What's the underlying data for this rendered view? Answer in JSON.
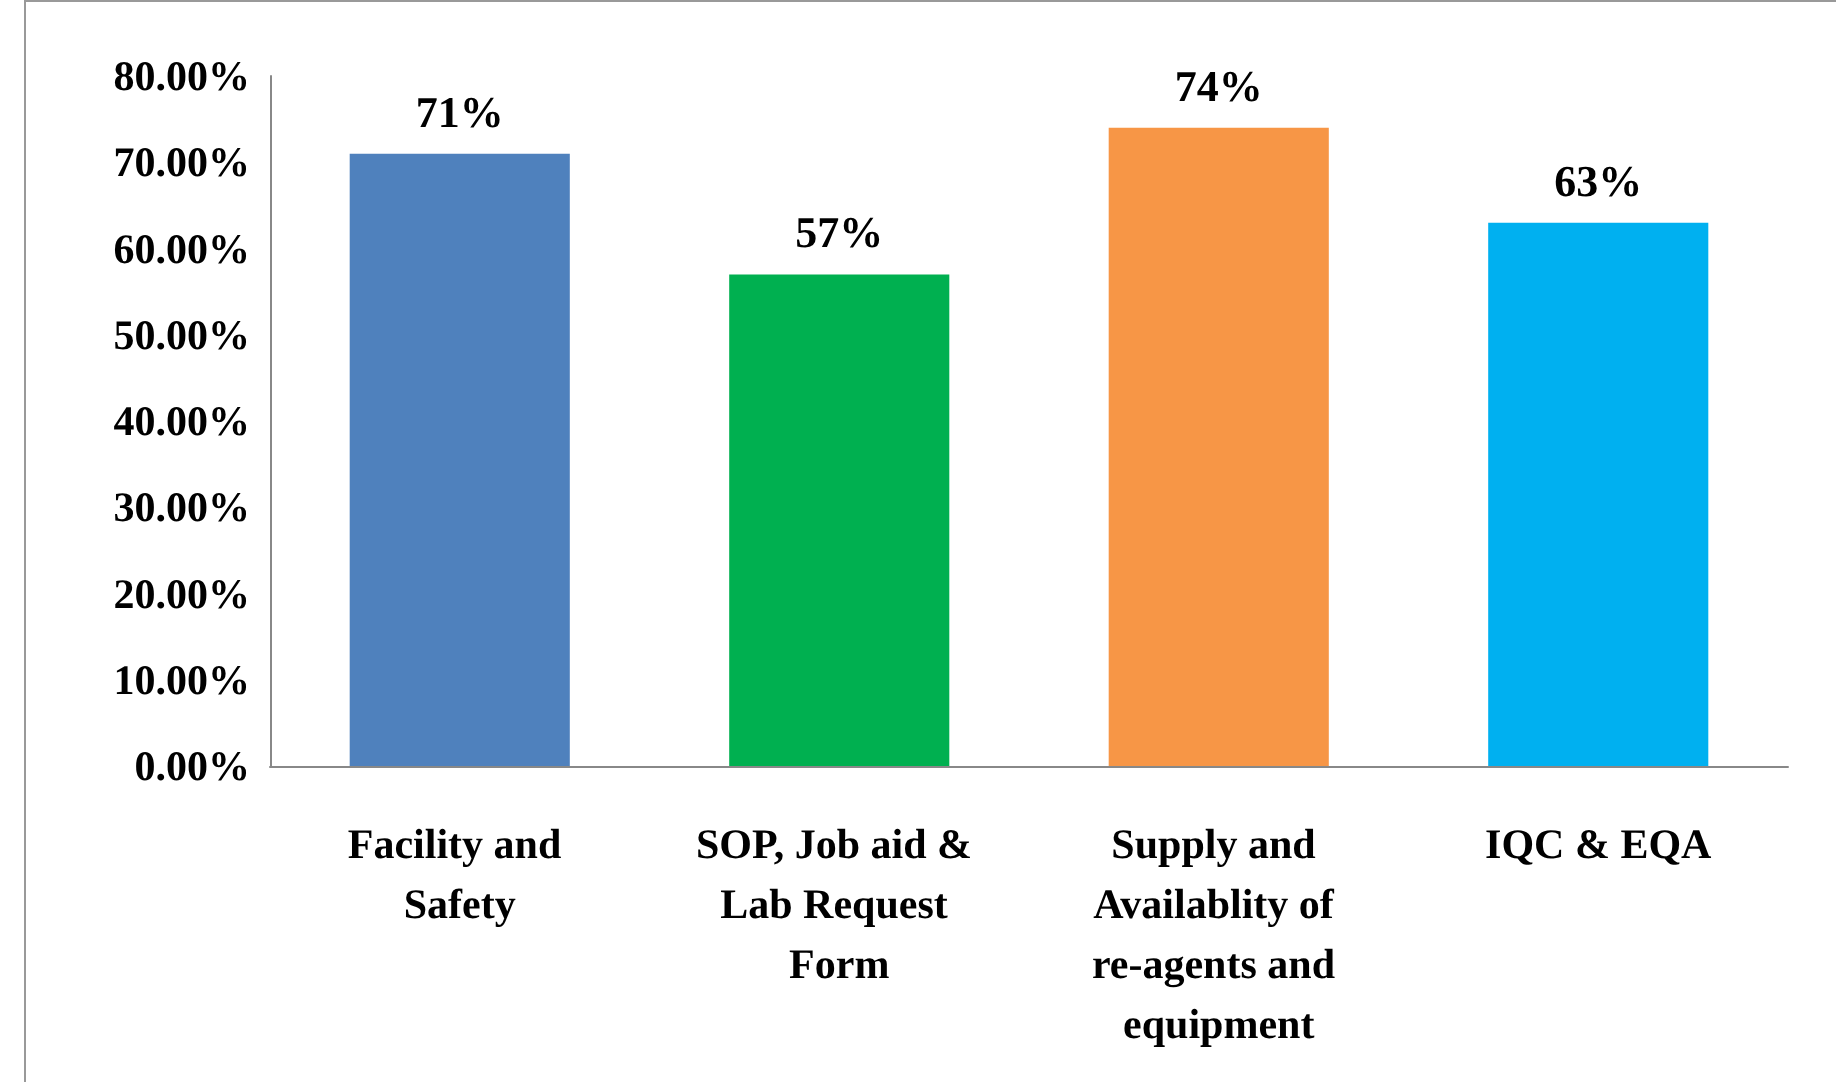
{
  "chart_data": {
    "type": "bar",
    "categories": [
      "Facility and Safety",
      "SOP, Job aid & Lab Request Form",
      "Supply and Availablity of re-agents and equipment",
      "IQC & EQA"
    ],
    "values": [
      71,
      57,
      74,
      63
    ],
    "colors": [
      "#4f81bd",
      "#00b050",
      "#f79646",
      "#00b0f0"
    ],
    "value_labels": [
      "71%",
      "57%",
      "74%",
      "63%"
    ],
    "ylim": [
      0,
      80
    ],
    "yticks": [
      {
        "value": 0,
        "label": "0.00%"
      },
      {
        "value": 10,
        "label": "10.00%"
      },
      {
        "value": 20,
        "label": "20.00%"
      },
      {
        "value": 30,
        "label": "30.00%"
      },
      {
        "value": 40,
        "label": "40.00%"
      },
      {
        "value": 50,
        "label": "50.00%"
      },
      {
        "value": 60,
        "label": "60.00%"
      },
      {
        "value": 70,
        "label": "70.00%"
      },
      {
        "value": 80,
        "label": "80.00%"
      }
    ],
    "grid": false
  }
}
